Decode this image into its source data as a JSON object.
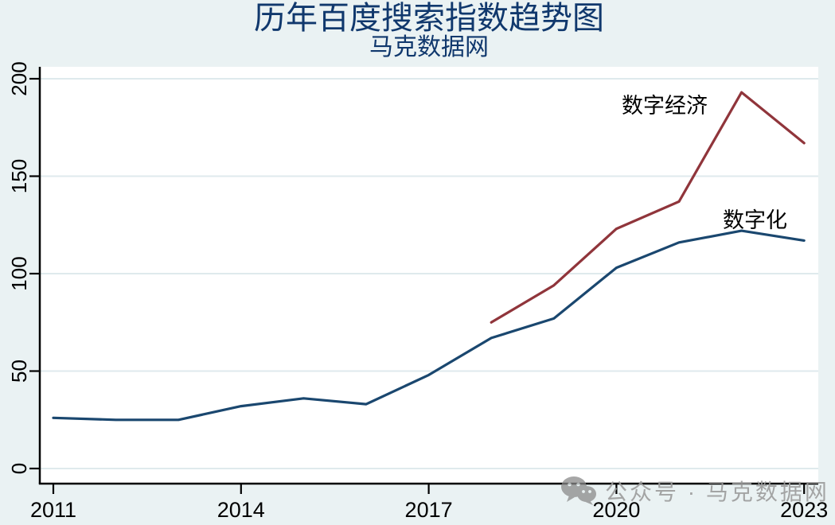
{
  "title": "历年百度搜索指数趋势图",
  "subtitle": "马克数据网",
  "watermark": {
    "text": "公众号 · 马克数据网"
  },
  "chart_data": {
    "type": "line",
    "title": "历年百度搜索指数趋势图",
    "subtitle": "马克数据网",
    "xlabel": "",
    "ylabel": "",
    "xlim": [
      2011,
      2023
    ],
    "ylim": [
      0,
      200
    ],
    "xticks": [
      2011,
      2014,
      2017,
      2020,
      2023
    ],
    "yticks": [
      0,
      50,
      100,
      150,
      200
    ],
    "grid": true,
    "legend_position": "inline-labels",
    "background_color": "#eaf2f3",
    "plot_background_color": "#ffffff",
    "gridline_color": "#dfeaed",
    "axis_color": "#000000",
    "series": [
      {
        "id": "digitalization",
        "name": "数字化",
        "color": "#1a476f",
        "x": [
          2011,
          2012,
          2013,
          2014,
          2015,
          2016,
          2017,
          2018,
          2019,
          2020,
          2021,
          2022,
          2023
        ],
        "values": [
          26,
          25,
          25,
          32,
          36,
          33,
          48,
          67,
          77,
          103,
          116,
          122,
          117
        ]
      },
      {
        "id": "digital-economy",
        "name": "数字经济",
        "color": "#90353b",
        "x": [
          2018,
          2019,
          2020,
          2021,
          2022,
          2023
        ],
        "values": [
          75,
          94,
          123,
          137,
          193,
          167
        ]
      }
    ]
  }
}
